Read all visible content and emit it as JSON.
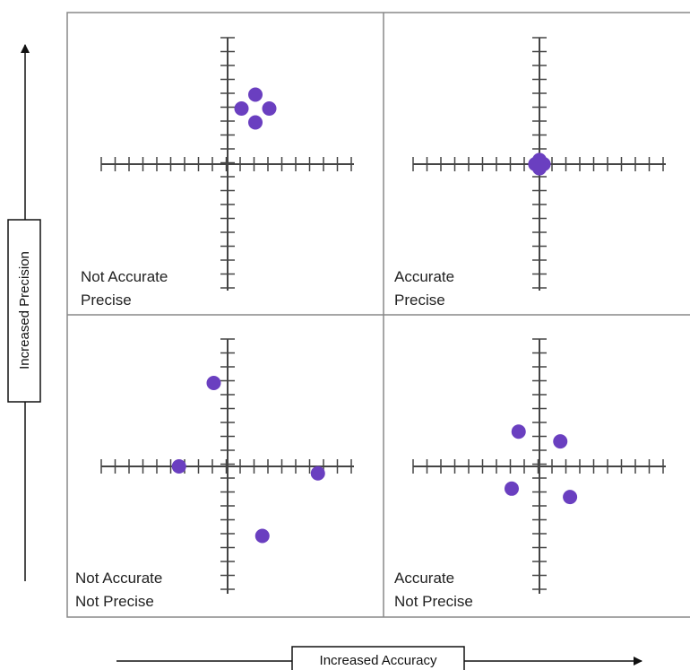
{
  "y_axis": {
    "label": "Increased Precision"
  },
  "x_axis": {
    "label": "Increased Accuracy"
  },
  "colors": {
    "dot": "#6a3fc0",
    "line": "#444444",
    "frame": "#888888"
  },
  "quadrants": [
    {
      "id": "top-left",
      "line1": "Not Accurate",
      "line2": "Precise",
      "dots": [
        [
          2.0,
          5.0
        ],
        [
          1.0,
          4.0
        ],
        [
          3.0,
          4.0
        ],
        [
          2.0,
          3.0
        ]
      ]
    },
    {
      "id": "top-right",
      "line1": "Accurate",
      "line2": "Precise",
      "dots": [
        [
          0.0,
          0.3
        ],
        [
          -0.3,
          0.0
        ],
        [
          0.3,
          0.0
        ],
        [
          0.0,
          -0.3
        ]
      ]
    },
    {
      "id": "bottom-left",
      "line1": "Not Accurate",
      "line2": "Not Precise",
      "dots": [
        [
          -1.0,
          6.0
        ],
        [
          -3.5,
          0.0
        ],
        [
          6.5,
          -0.5
        ],
        [
          2.5,
          -5.0
        ]
      ]
    },
    {
      "id": "bottom-right",
      "line1": "Accurate",
      "line2": "Not Precise",
      "dots": [
        [
          -1.5,
          2.5
        ],
        [
          1.5,
          1.8
        ],
        [
          -2.0,
          -1.6
        ],
        [
          2.2,
          -2.2
        ]
      ]
    }
  ]
}
